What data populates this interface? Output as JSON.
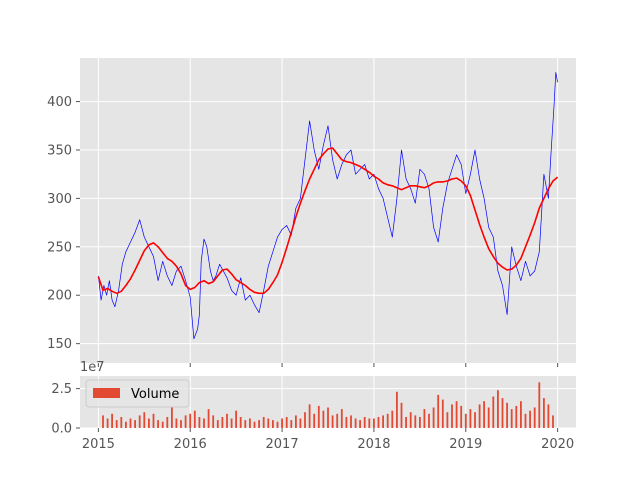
{
  "chart_data": [
    {
      "type": "line",
      "xlim": [
        2014.8,
        2020.2
      ],
      "ylim": [
        130,
        445
      ],
      "x_ticks": [
        2015,
        2016,
        2017,
        2018,
        2019,
        2020
      ],
      "y_ticks": [
        150,
        200,
        250,
        300,
        350,
        400
      ],
      "y_tick_labels": [
        "150",
        "200",
        "250",
        "300",
        "350",
        "400"
      ],
      "grid": true,
      "series": [
        {
          "color": "#0000ff",
          "style": "thin-line",
          "x": [
            2015.0,
            2015.03,
            2015.06,
            2015.09,
            2015.12,
            2015.15,
            2015.18,
            2015.22,
            2015.26,
            2015.3,
            2015.35,
            2015.4,
            2015.45,
            2015.5,
            2015.55,
            2015.6,
            2015.65,
            2015.7,
            2015.75,
            2015.8,
            2015.85,
            2015.9,
            2015.95,
            2016.0,
            2016.04,
            2016.08,
            2016.1,
            2016.12,
            2016.15,
            2016.18,
            2016.22,
            2016.25,
            2016.28,
            2016.32,
            2016.36,
            2016.4,
            2016.45,
            2016.5,
            2016.55,
            2016.6,
            2016.65,
            2016.7,
            2016.75,
            2016.8,
            2016.85,
            2016.9,
            2016.95,
            2017.0,
            2017.05,
            2017.1,
            2017.15,
            2017.2,
            2017.25,
            2017.3,
            2017.35,
            2017.4,
            2017.45,
            2017.5,
            2017.55,
            2017.6,
            2017.65,
            2017.7,
            2017.75,
            2017.8,
            2017.85,
            2017.9,
            2017.95,
            2018.0,
            2018.05,
            2018.1,
            2018.15,
            2018.2,
            2018.25,
            2018.3,
            2018.35,
            2018.4,
            2018.45,
            2018.5,
            2018.55,
            2018.6,
            2018.65,
            2018.7,
            2018.75,
            2018.8,
            2018.85,
            2018.9,
            2018.95,
            2019.0,
            2019.05,
            2019.1,
            2019.15,
            2019.2,
            2019.25,
            2019.3,
            2019.35,
            2019.4,
            2019.45,
            2019.5,
            2019.55,
            2019.6,
            2019.65,
            2019.7,
            2019.75,
            2019.8,
            2019.85,
            2019.9,
            2019.93,
            2019.96,
            2019.98,
            2020.0
          ],
          "values": [
            220,
            195,
            210,
            200,
            215,
            195,
            188,
            205,
            232,
            245,
            255,
            265,
            278,
            260,
            250,
            240,
            215,
            235,
            220,
            210,
            225,
            230,
            215,
            198,
            155,
            165,
            180,
            235,
            258,
            250,
            225,
            215,
            220,
            232,
            225,
            218,
            205,
            200,
            218,
            195,
            200,
            190,
            182,
            205,
            230,
            245,
            260,
            268,
            272,
            262,
            290,
            300,
            340,
            380,
            350,
            330,
            355,
            375,
            340,
            320,
            335,
            345,
            350,
            325,
            330,
            335,
            320,
            325,
            310,
            300,
            280,
            260,
            300,
            350,
            320,
            310,
            295,
            330,
            325,
            310,
            270,
            255,
            290,
            315,
            330,
            345,
            335,
            305,
            325,
            350,
            320,
            300,
            270,
            260,
            225,
            210,
            180,
            250,
            230,
            215,
            235,
            220,
            225,
            245,
            325,
            300,
            350,
            395,
            430,
            420
          ]
        },
        {
          "color": "#ff0000",
          "style": "moving-average",
          "x": [
            2015.0,
            2015.05,
            2015.1,
            2015.15,
            2015.2,
            2015.25,
            2015.3,
            2015.35,
            2015.4,
            2015.45,
            2015.5,
            2015.55,
            2015.6,
            2015.65,
            2015.7,
            2015.75,
            2015.8,
            2015.85,
            2015.9,
            2015.95,
            2016.0,
            2016.05,
            2016.1,
            2016.15,
            2016.2,
            2016.25,
            2016.3,
            2016.35,
            2016.4,
            2016.45,
            2016.5,
            2016.55,
            2016.6,
            2016.65,
            2016.7,
            2016.75,
            2016.8,
            2016.85,
            2016.9,
            2016.95,
            2017.0,
            2017.05,
            2017.1,
            2017.15,
            2017.2,
            2017.25,
            2017.3,
            2017.35,
            2017.4,
            2017.45,
            2017.5,
            2017.55,
            2017.6,
            2017.65,
            2017.7,
            2017.75,
            2017.8,
            2017.85,
            2017.9,
            2017.95,
            2018.0,
            2018.05,
            2018.1,
            2018.15,
            2018.2,
            2018.25,
            2018.3,
            2018.35,
            2018.4,
            2018.45,
            2018.5,
            2018.55,
            2018.6,
            2018.65,
            2018.7,
            2018.75,
            2018.8,
            2018.85,
            2018.9,
            2018.95,
            2019.0,
            2019.05,
            2019.1,
            2019.15,
            2019.2,
            2019.25,
            2019.3,
            2019.35,
            2019.4,
            2019.45,
            2019.5,
            2019.55,
            2019.6,
            2019.65,
            2019.7,
            2019.75,
            2019.8,
            2019.85,
            2019.9,
            2019.95,
            2020.0
          ],
          "values": [
            219,
            205,
            207,
            204,
            202,
            204,
            210,
            217,
            226,
            236,
            246,
            252,
            254,
            250,
            244,
            238,
            235,
            230,
            222,
            210,
            206,
            208,
            213,
            215,
            212,
            214,
            220,
            226,
            227,
            222,
            216,
            213,
            210,
            206,
            203,
            202,
            202,
            206,
            213,
            221,
            234,
            249,
            265,
            281,
            295,
            308,
            320,
            330,
            340,
            346,
            351,
            352,
            346,
            340,
            338,
            337,
            335,
            333,
            330,
            327,
            323,
            320,
            316,
            314,
            313,
            311,
            309,
            311,
            313,
            313,
            312,
            311,
            313,
            316,
            317,
            317,
            318,
            320,
            321,
            318,
            313,
            303,
            288,
            273,
            260,
            248,
            240,
            233,
            229,
            226,
            227,
            231,
            238,
            250,
            262,
            275,
            290,
            300,
            310,
            318,
            322
          ]
        }
      ]
    },
    {
      "type": "bar",
      "xlim": [
        2014.8,
        2020.2
      ],
      "ylim": [
        0,
        3.3
      ],
      "x_ticks": [
        2015,
        2016,
        2017,
        2018,
        2019,
        2020
      ],
      "x_tick_labels": [
        "2015",
        "2016",
        "2017",
        "2018",
        "2019",
        "2020"
      ],
      "y_ticks": [
        0.0,
        2.5
      ],
      "y_tick_labels": [
        "0.0",
        "2.5"
      ],
      "offset_label": "1e7",
      "grid": true,
      "legend_placement": "upper-left",
      "series": [
        {
          "name": "Volume",
          "color": "#e24a33",
          "x": [
            2015.05,
            2015.1,
            2015.15,
            2015.2,
            2015.25,
            2015.3,
            2015.35,
            2015.4,
            2015.45,
            2015.5,
            2015.55,
            2015.6,
            2015.65,
            2015.7,
            2015.75,
            2015.8,
            2015.85,
            2015.9,
            2015.95,
            2016.0,
            2016.05,
            2016.1,
            2016.15,
            2016.2,
            2016.25,
            2016.3,
            2016.35,
            2016.4,
            2016.45,
            2016.5,
            2016.55,
            2016.6,
            2016.65,
            2016.7,
            2016.75,
            2016.8,
            2016.85,
            2016.9,
            2016.95,
            2017.0,
            2017.05,
            2017.1,
            2017.15,
            2017.2,
            2017.25,
            2017.3,
            2017.35,
            2017.4,
            2017.45,
            2017.5,
            2017.55,
            2017.6,
            2017.65,
            2017.7,
            2017.75,
            2017.8,
            2017.85,
            2017.9,
            2017.95,
            2018.0,
            2018.05,
            2018.1,
            2018.15,
            2018.2,
            2018.25,
            2018.3,
            2018.35,
            2018.4,
            2018.45,
            2018.5,
            2018.55,
            2018.6,
            2018.65,
            2018.7,
            2018.75,
            2018.8,
            2018.85,
            2018.9,
            2018.95,
            2019.0,
            2019.05,
            2019.1,
            2019.15,
            2019.2,
            2019.25,
            2019.3,
            2019.35,
            2019.4,
            2019.45,
            2019.5,
            2019.55,
            2019.6,
            2019.65,
            2019.7,
            2019.75,
            2019.8,
            2019.85,
            2019.9,
            2019.95
          ],
          "values": [
            0.8,
            0.6,
            0.9,
            0.5,
            0.7,
            0.4,
            0.6,
            0.5,
            0.8,
            1.0,
            0.6,
            0.9,
            0.5,
            0.4,
            0.7,
            1.3,
            0.6,
            0.5,
            0.8,
            0.9,
            1.1,
            0.7,
            0.6,
            1.2,
            0.8,
            0.5,
            0.7,
            0.9,
            0.6,
            1.1,
            0.7,
            0.5,
            0.6,
            0.4,
            0.5,
            0.7,
            0.6,
            0.5,
            0.4,
            0.6,
            0.7,
            0.5,
            0.8,
            0.6,
            1.0,
            1.5,
            0.9,
            1.4,
            1.1,
            1.3,
            0.8,
            0.9,
            1.2,
            0.7,
            0.8,
            0.6,
            0.5,
            0.7,
            0.6,
            0.6,
            0.7,
            0.8,
            0.9,
            1.1,
            2.3,
            1.6,
            0.7,
            1.0,
            0.8,
            0.7,
            1.2,
            0.9,
            1.3,
            2.1,
            1.8,
            1.0,
            1.5,
            1.7,
            1.4,
            0.9,
            1.2,
            1.0,
            1.5,
            1.7,
            1.3,
            2.0,
            2.4,
            1.9,
            1.6,
            1.2,
            1.4,
            1.7,
            0.9,
            1.1,
            1.3,
            2.9,
            1.9,
            1.5,
            0.8
          ]
        }
      ]
    }
  ]
}
